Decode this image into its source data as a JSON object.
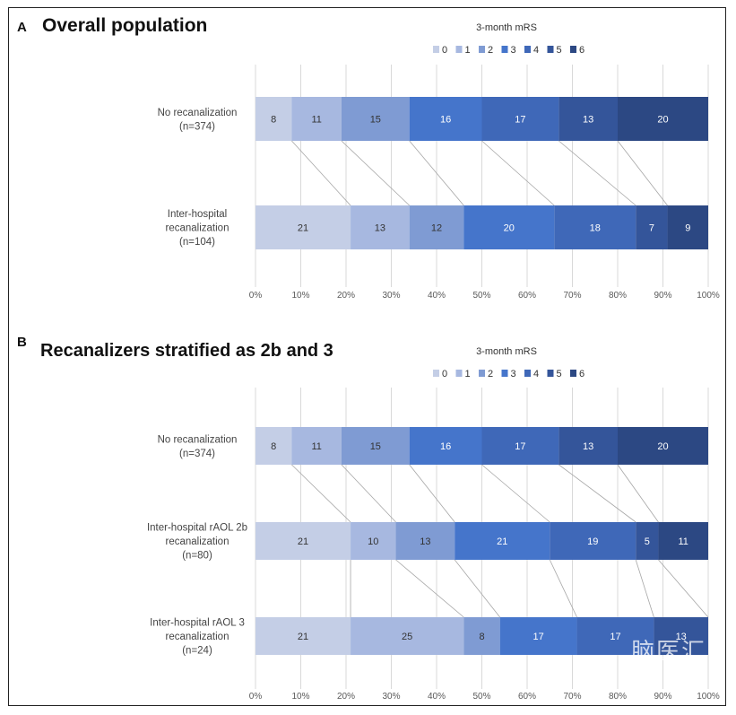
{
  "panels": [
    {
      "letter": "A",
      "title": "Overall population"
    },
    {
      "letter": "B",
      "title": "Recanalizers stratified as 2b and 3"
    }
  ],
  "watermark": "脑医汇",
  "colors": [
    "#c4cee6",
    "#a7b8e0",
    "#7f9bd3",
    "#4575cb",
    "#3f68b8",
    "#34559a",
    "#2c4883"
  ],
  "chart_data": [
    {
      "type": "bar",
      "stacked": true,
      "orientation": "horizontal",
      "title": "Overall population",
      "legend_title": "3-month mRS",
      "legend_placement": "top-right",
      "series_names": [
        "0",
        "1",
        "2",
        "3",
        "4",
        "5",
        "6"
      ],
      "categories": [
        [
          "No recanalization",
          "(n=374)"
        ],
        [
          "Inter-hospital",
          "recanalization",
          "(n=104)"
        ]
      ],
      "values": [
        [
          8,
          11,
          15,
          16,
          17,
          13,
          20
        ],
        [
          21,
          13,
          12,
          20,
          18,
          7,
          9
        ]
      ],
      "x_ticks": [
        "0%",
        "10%",
        "20%",
        "30%",
        "40%",
        "50%",
        "60%",
        "70%",
        "80%",
        "90%",
        "100%"
      ],
      "xlim": [
        0,
        100
      ],
      "grid": true
    },
    {
      "type": "bar",
      "stacked": true,
      "orientation": "horizontal",
      "title": "Recanalizers stratified as 2b and 3",
      "legend_title": "3-month mRS",
      "legend_placement": "top-right",
      "series_names": [
        "0",
        "1",
        "2",
        "3",
        "4",
        "5",
        "6"
      ],
      "categories": [
        [
          "No recanalization",
          "(n=374)"
        ],
        [
          "Inter-hospital rAOL 2b",
          "recanalization",
          "(n=80)"
        ],
        [
          "Inter-hospital rAOL 3",
          "recanalization",
          "(n=24)"
        ]
      ],
      "values": [
        [
          8,
          11,
          15,
          16,
          17,
          13,
          20
        ],
        [
          21,
          10,
          13,
          21,
          19,
          5,
          11
        ],
        [
          21,
          25,
          8,
          17,
          17,
          13,
          0
        ]
      ],
      "x_ticks": [
        "0%",
        "10%",
        "20%",
        "30%",
        "40%",
        "50%",
        "60%",
        "70%",
        "80%",
        "90%",
        "100%"
      ],
      "xlim": [
        0,
        100
      ],
      "grid": true
    }
  ]
}
